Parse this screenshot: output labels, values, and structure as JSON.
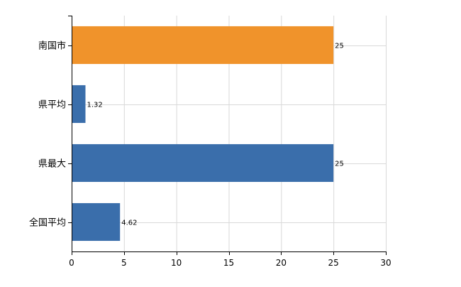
{
  "chart_data": {
    "type": "bar",
    "orientation": "horizontal",
    "categories": [
      "南国市",
      "県平均",
      "県最大",
      "全国平均"
    ],
    "values": [
      25,
      1.32,
      25,
      4.62
    ],
    "data_labels": [
      "25",
      "1.32",
      "25",
      "4.62"
    ],
    "bar_colors": [
      "#f0932b",
      "#3a6eab",
      "#3a6eab",
      "#3a6eab"
    ],
    "xlim": [
      0,
      30
    ],
    "xticks": [
      0,
      5,
      10,
      15,
      20,
      25,
      30
    ],
    "grid": true,
    "legend": "none",
    "title": "",
    "xlabel": "",
    "ylabel": ""
  }
}
